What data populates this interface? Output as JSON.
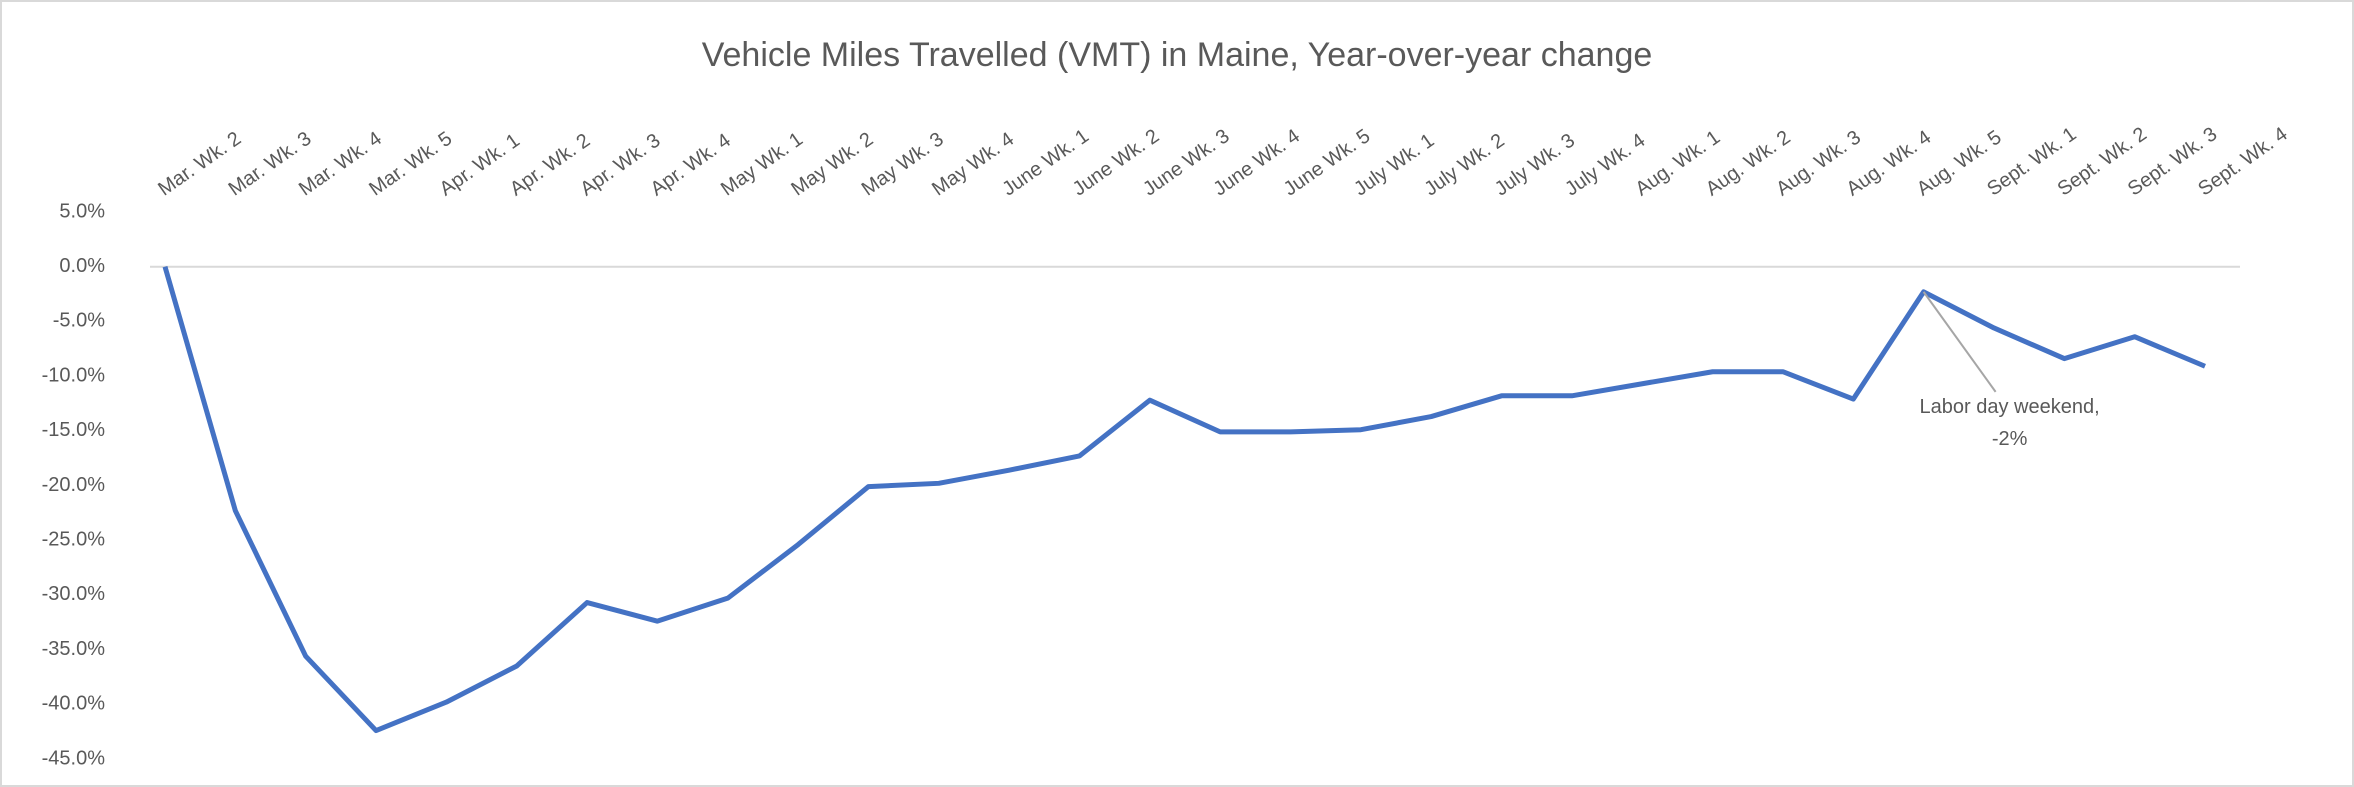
{
  "chart_data": {
    "type": "line",
    "title": "Vehicle Miles Travelled (VMT) in Maine, Year-over-year change",
    "categories": [
      "Mar. Wk. 2",
      "Mar. Wk. 3",
      "Mar. Wk. 4",
      "Mar. Wk. 5",
      "Apr. Wk. 1",
      "Apr. Wk. 2",
      "Apr. Wk. 3",
      "Apr. Wk. 4",
      "May Wk. 1",
      "May Wk. 2",
      "May Wk. 3",
      "May Wk. 4",
      "June Wk. 1",
      "June Wk. 2",
      "June Wk. 3",
      "June Wk. 4",
      "June Wk. 5",
      "July Wk. 1",
      "July Wk. 2",
      "July Wk. 3",
      "July Wk. 4",
      "Aug. Wk. 1",
      "Aug. Wk. 2",
      "Aug. Wk. 3",
      "Aug. Wk. 4",
      "Aug. Wk. 5",
      "Sept. Wk. 1",
      "Sept. Wk. 2",
      "Sept. Wk. 3",
      "Sept. Wk. 4"
    ],
    "series": [
      {
        "color": "#4472c4",
        "values": [
          0,
          -22.3,
          -35.6,
          -42.4,
          -39.8,
          -36.5,
          -30.7,
          -32.4,
          -30.3,
          -25.4,
          -20.1,
          -19.8,
          -18.6,
          -17.3,
          -12.2,
          -15.1,
          -15.1,
          -14.9,
          -13.7,
          -11.8,
          -11.8,
          -10.7,
          -9.6,
          -9.6,
          -12.1,
          -2.3,
          -5.6,
          -8.4,
          -6.4,
          -9.1
        ]
      }
    ],
    "ylim": [
      -45,
      5
    ],
    "yticks": [
      {
        "value": 5,
        "label": "5.0%"
      },
      {
        "value": 0,
        "label": "0.0%"
      },
      {
        "value": -5,
        "label": "-5.0%"
      },
      {
        "value": -10,
        "label": "-10.0%"
      },
      {
        "value": -15,
        "label": "-15.0%"
      },
      {
        "value": -20,
        "label": "-20.0%"
      },
      {
        "value": -25,
        "label": "-25.0%"
      },
      {
        "value": -30,
        "label": "-30.0%"
      },
      {
        "value": -35,
        "label": "-35.0%"
      },
      {
        "value": -40,
        "label": "-40.0%"
      },
      {
        "value": -45,
        "label": "-45.0%"
      }
    ],
    "grid": false,
    "annotation": {
      "text": [
        "Labor day weekend,",
        "-2%"
      ]
    }
  }
}
